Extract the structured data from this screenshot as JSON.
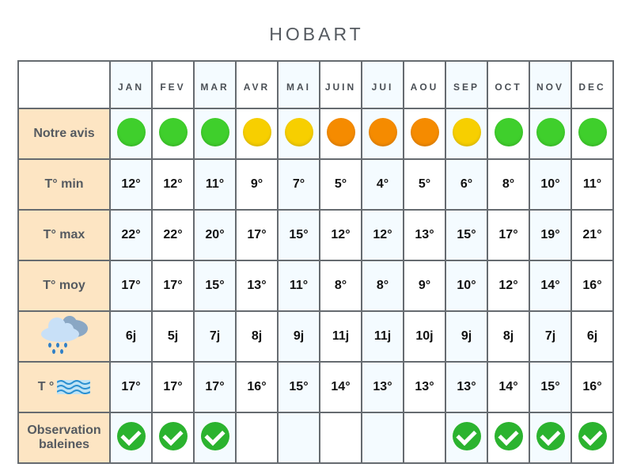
{
  "title": "HOBART",
  "months": [
    "JAN",
    "FEV",
    "MAR",
    "AVR",
    "MAI",
    "JUIN",
    "JUI",
    "AOU",
    "SEP",
    "OCT",
    "NOV",
    "DEC"
  ],
  "colors": {
    "green": "#3fcf2c",
    "yellow": "#f7cf00",
    "orange": "#f58b00",
    "check": "#2bb32f",
    "label_bg": "#fde5c3",
    "alt_bg": "#f4fbff"
  },
  "rows": [
    {
      "label": "Notre avis",
      "type": "rating",
      "values": [
        "green",
        "green",
        "green",
        "yellow",
        "yellow",
        "orange",
        "orange",
        "orange",
        "yellow",
        "green",
        "green",
        "green"
      ]
    },
    {
      "label": "T° min",
      "type": "text",
      "values": [
        "12°",
        "12°",
        "11°",
        "9°",
        "7°",
        "5°",
        "4°",
        "5°",
        "6°",
        "8°",
        "10°",
        "11°"
      ]
    },
    {
      "label": "T° max",
      "type": "text",
      "values": [
        "22°",
        "22°",
        "20°",
        "17°",
        "15°",
        "12°",
        "12°",
        "13°",
        "15°",
        "17°",
        "19°",
        "21°"
      ]
    },
    {
      "label": "T° moy",
      "type": "text",
      "values": [
        "17°",
        "17°",
        "15°",
        "13°",
        "11°",
        "8°",
        "8°",
        "9°",
        "10°",
        "12°",
        "14°",
        "16°"
      ]
    },
    {
      "label": "",
      "icon": "rain-cloud-icon",
      "type": "text",
      "values": [
        "6j",
        "5j",
        "7j",
        "8j",
        "9j",
        "11j",
        "11j",
        "10j",
        "9j",
        "8j",
        "7j",
        "6j"
      ]
    },
    {
      "label": "T °",
      "icon": "water-waves-icon",
      "type": "text",
      "values": [
        "17°",
        "17°",
        "17°",
        "16°",
        "15°",
        "14°",
        "13°",
        "13°",
        "13°",
        "14°",
        "15°",
        "16°"
      ]
    },
    {
      "label": "Observation baleines",
      "type": "check",
      "values": [
        true,
        true,
        true,
        false,
        false,
        false,
        false,
        false,
        true,
        true,
        true,
        true
      ]
    }
  ]
}
